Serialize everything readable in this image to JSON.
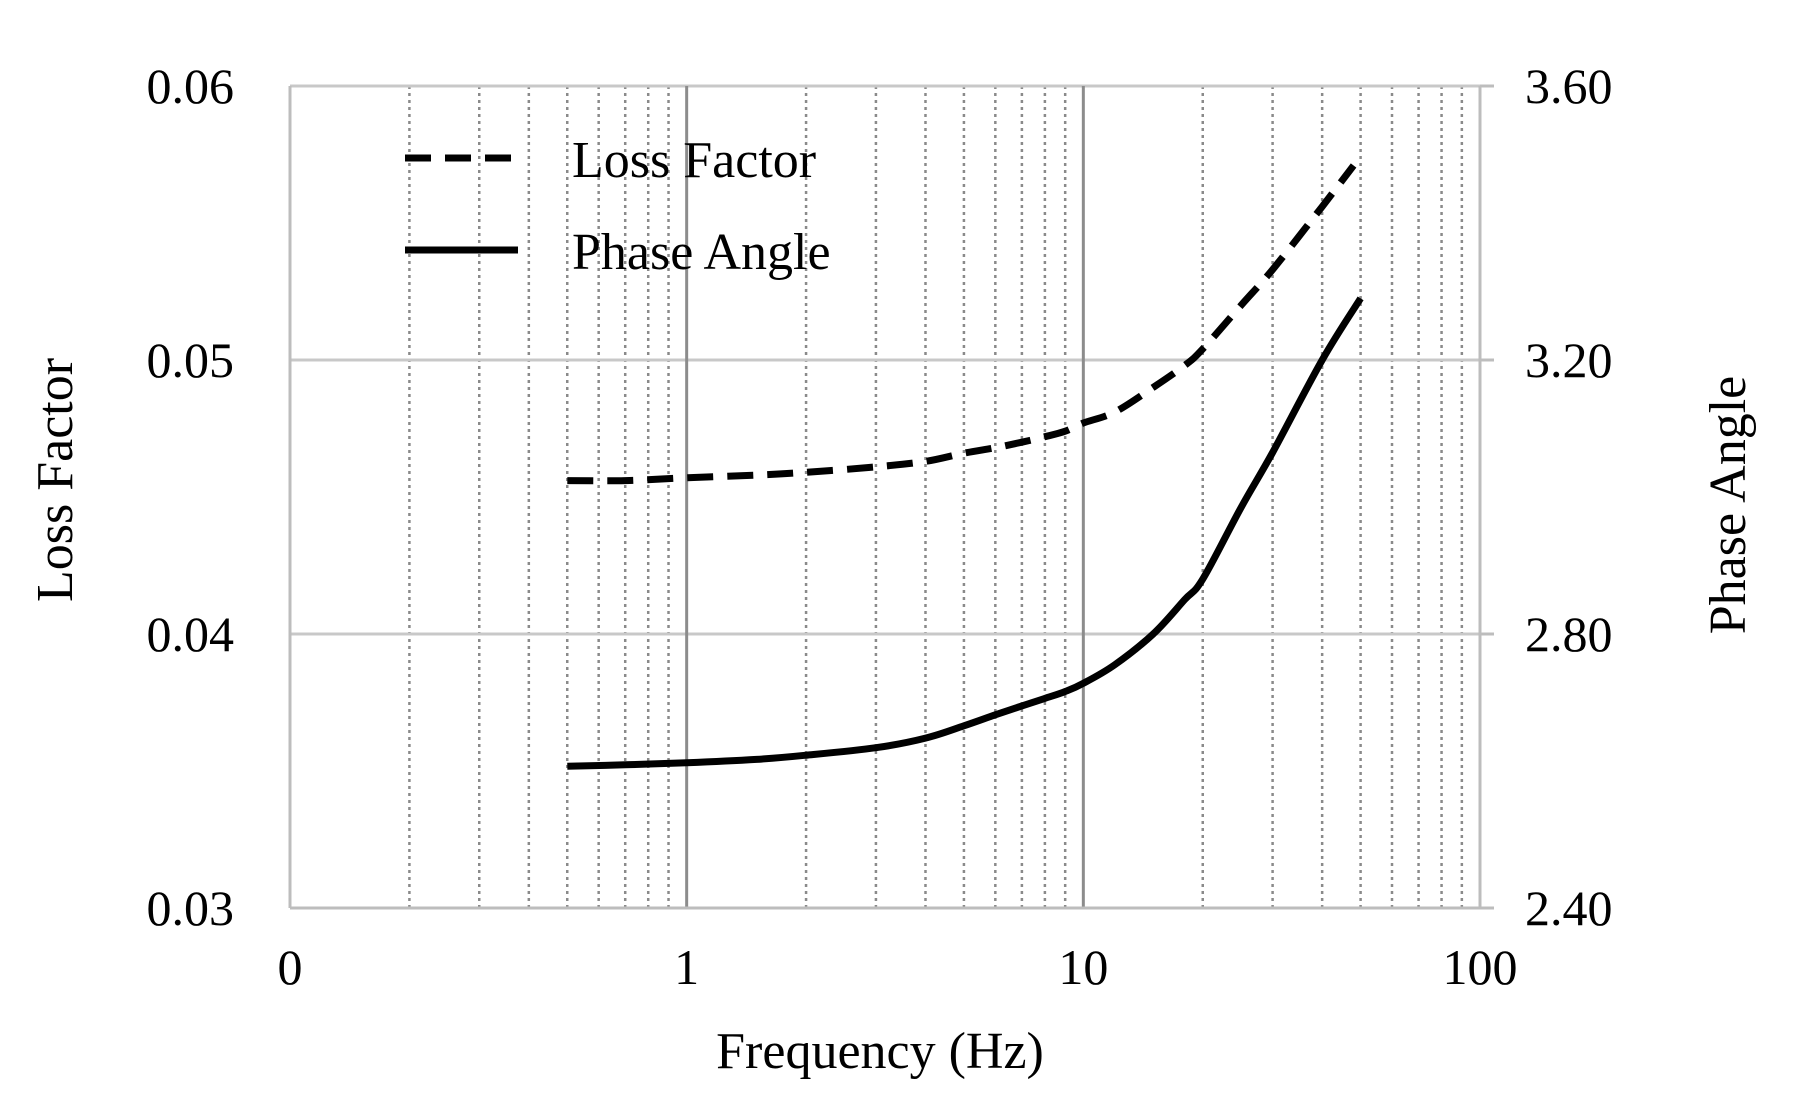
{
  "chart_data": {
    "type": "line",
    "title": "",
    "xlabel": "Frequency (Hz)",
    "ylabel": "Loss Factor",
    "y2label": "Phase Angle",
    "x_scale": "log",
    "xlim": [
      0.1,
      100
    ],
    "ylim": [
      0.03,
      0.06
    ],
    "y2lim": [
      2.4,
      3.6
    ],
    "x_ticks": [
      0.1,
      1,
      10,
      100
    ],
    "x_tick_labels": [
      "0",
      "1",
      "10",
      "100"
    ],
    "y_ticks": [
      0.03,
      0.04,
      0.05,
      0.06
    ],
    "y_tick_labels": [
      "0.03",
      "0.04",
      "0.05",
      "0.06"
    ],
    "y2_ticks": [
      2.4,
      2.8,
      3.2,
      3.6
    ],
    "y2_tick_labels": [
      "2.40",
      "2.80",
      "3.20",
      "3.60"
    ],
    "grid": {
      "major_horizontal": true,
      "major_vertical": true,
      "minor_vertical_dotted": true
    },
    "legend_position": "top-left",
    "series": [
      {
        "name": "Loss Factor",
        "axis": "left",
        "style": "dashed",
        "color": "#000000",
        "x": [
          0.5,
          0.7,
          1,
          1.5,
          2,
          3,
          4,
          5,
          6,
          7,
          8,
          9,
          10,
          12,
          15,
          18,
          20,
          25,
          30,
          40,
          48
        ],
        "values": [
          0.0456,
          0.0456,
          0.0457,
          0.0458,
          0.0459,
          0.0461,
          0.0463,
          0.0466,
          0.0468,
          0.047,
          0.0472,
          0.0474,
          0.0477,
          0.0481,
          0.049,
          0.0498,
          0.0504,
          0.052,
          0.0533,
          0.0556,
          0.0571
        ]
      },
      {
        "name": "Phase Angle",
        "axis": "right",
        "style": "solid",
        "color": "#000000",
        "x": [
          0.5,
          0.7,
          1,
          1.5,
          2,
          3,
          4,
          5,
          6,
          7,
          8,
          9,
          10,
          12,
          15,
          18,
          20,
          25,
          30,
          40,
          50
        ],
        "values": [
          2.607,
          2.609,
          2.612,
          2.617,
          2.623,
          2.634,
          2.648,
          2.666,
          2.682,
          2.695,
          2.706,
          2.716,
          2.728,
          2.755,
          2.8,
          2.85,
          2.88,
          2.985,
          3.065,
          3.2,
          3.29
        ]
      }
    ]
  }
}
